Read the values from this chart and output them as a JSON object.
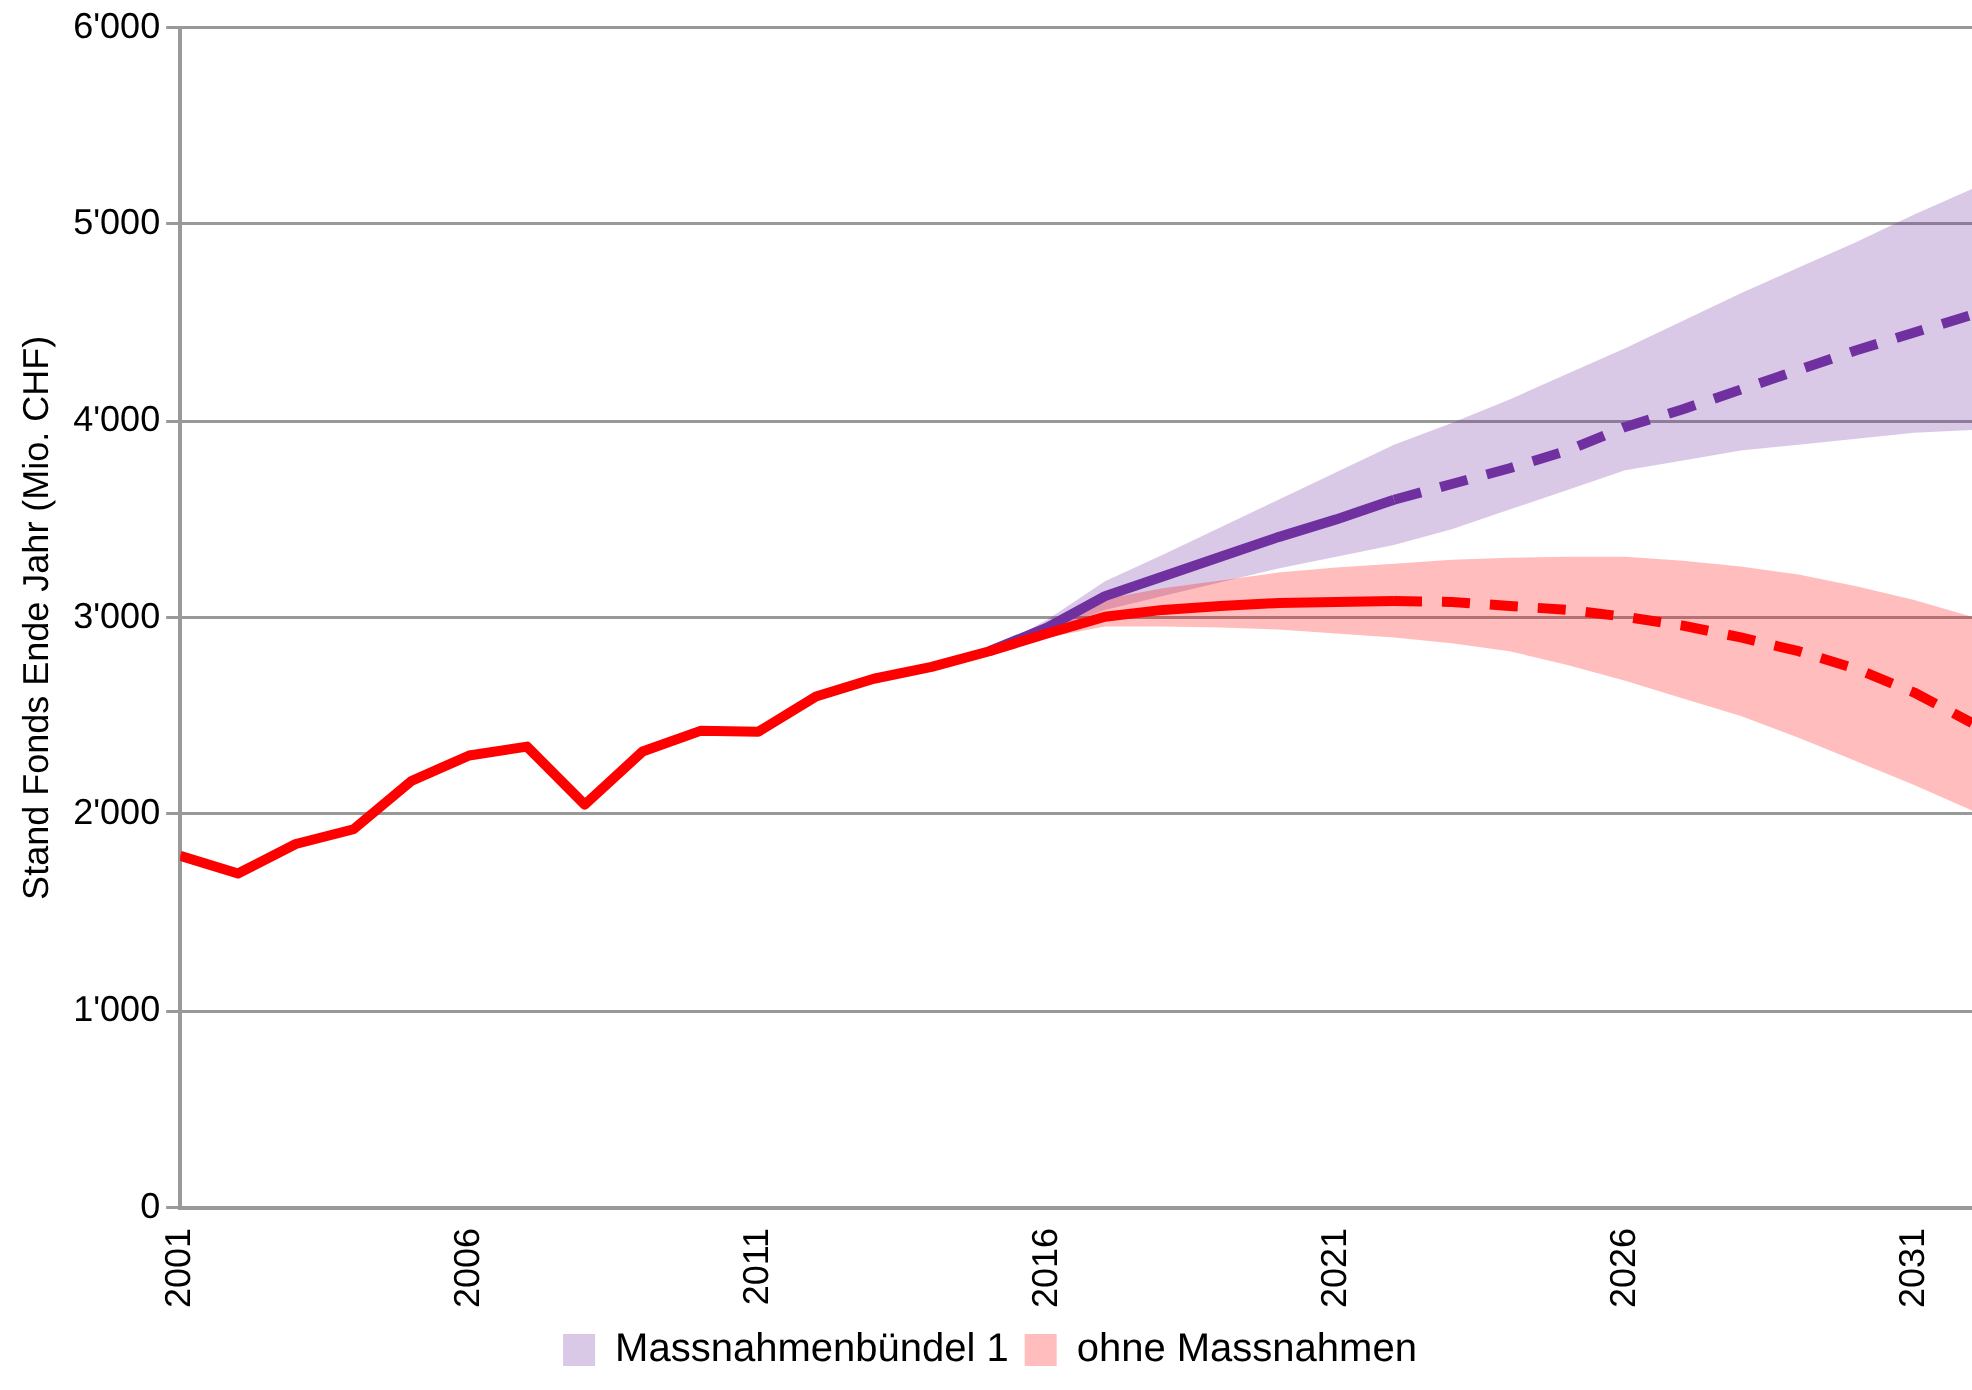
{
  "chart_data": {
    "type": "line",
    "ylabel": "Stand Fonds Ende Jahr (Mio. CHF)",
    "xlim": [
      2001,
      2032
    ],
    "xticks": [
      2001,
      2006,
      2011,
      2016,
      2021,
      2026,
      2031
    ],
    "ylim": [
      0,
      6000
    ],
    "yticks": [
      0,
      {
        "value": 1000,
        "label": "1'000"
      },
      {
        "value": 2000,
        "label": "2'000"
      },
      {
        "value": 3000,
        "label": "3'000"
      },
      {
        "value": 4000,
        "label": "4'000"
      },
      {
        "value": 5000,
        "label": "5'000"
      },
      {
        "value": 6000,
        "label": "6'000"
      }
    ],
    "grid": "y",
    "legend": "bottom",
    "marker": "none",
    "series": [
      {
        "color": "#7030a0",
        "line_style": "solid",
        "x": [
          2015,
          2016,
          2017,
          2018,
          2019,
          2020,
          2021,
          2022
        ],
        "values": [
          2830,
          2950,
          3110,
          3210,
          3310,
          3410,
          3500,
          3600
        ]
      },
      {
        "name": "Massnahmenbündel 1",
        "color": "#7030a0",
        "line_style": "dashed",
        "x": [
          2015,
          2016,
          2017,
          2018,
          2019,
          2020,
          2021,
          2022,
          2023,
          2024,
          2025,
          2026,
          2027,
          2028,
          2029,
          2030,
          2031,
          2032
        ],
        "values": [
          null,
          null,
          null,
          null,
          null,
          null,
          null,
          3600,
          3680,
          3760,
          3850,
          3970,
          4060,
          4160,
          4260,
          4360,
          4450,
          4540
        ],
        "lower": [
          2830,
          2930,
          3040,
          3110,
          3180,
          3250,
          3310,
          3370,
          3450,
          3550,
          3650,
          3750,
          3800,
          3850,
          3880,
          3910,
          3940,
          3955
        ],
        "upper": [
          2830,
          2990,
          3185,
          3320,
          3460,
          3600,
          3740,
          3880,
          3990,
          4110,
          4240,
          4370,
          4510,
          4650,
          4780,
          4910,
          5050,
          5180
        ]
      },
      {
        "color": "#ff0000",
        "line_style": "solid",
        "x": [
          2001,
          2002,
          2003,
          2004,
          2005,
          2006,
          2007,
          2008,
          2009,
          2010,
          2011,
          2012,
          2013,
          2014,
          2015,
          2016,
          2017,
          2018,
          2019,
          2020,
          2021,
          2022
        ],
        "values": [
          1790,
          1700,
          1850,
          1925,
          2170,
          2300,
          2345,
          2050,
          2320,
          2425,
          2420,
          2600,
          2690,
          2750,
          2830,
          2920,
          3005,
          3040,
          3060,
          3075,
          3080,
          3085
        ]
      },
      {
        "name": "ohne Massnahmen",
        "color": "#ff0000",
        "line_style": "dashed",
        "x": [
          2015,
          2016,
          2017,
          2018,
          2019,
          2020,
          2021,
          2022,
          2023,
          2024,
          2025,
          2026,
          2027,
          2028,
          2029,
          2030,
          2031,
          2032
        ],
        "values": [
          null,
          null,
          null,
          null,
          null,
          null,
          null,
          3085,
          3080,
          3060,
          3040,
          3005,
          2960,
          2900,
          2830,
          2740,
          2620,
          2465
        ],
        "lower": [
          2830,
          2900,
          2955,
          2955,
          2950,
          2940,
          2920,
          2900,
          2870,
          2830,
          2760,
          2680,
          2590,
          2500,
          2390,
          2270,
          2150,
          2020
        ],
        "upper": [
          2830,
          2950,
          3095,
          3150,
          3190,
          3230,
          3255,
          3275,
          3295,
          3305,
          3310,
          3310,
          3290,
          3260,
          3220,
          3160,
          3090,
          3005
        ]
      }
    ]
  }
}
